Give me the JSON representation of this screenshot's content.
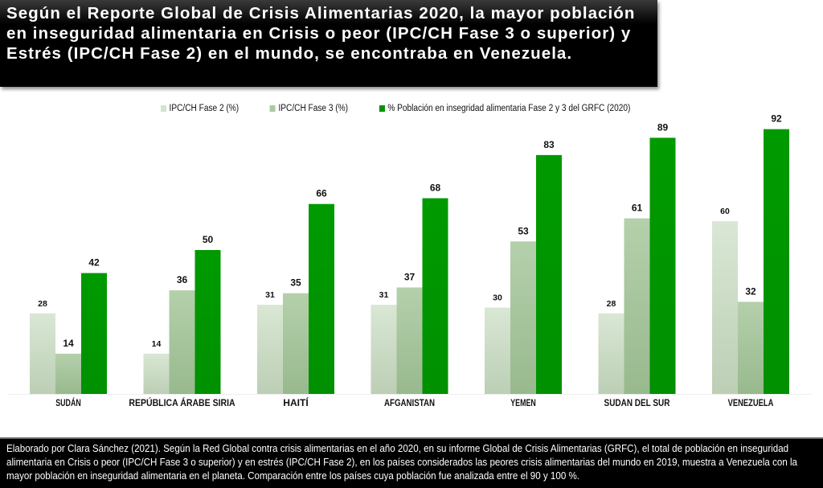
{
  "header": {
    "title": "Según el Reporte Global de Crisis Alimentarias 2020, la mayor población en inseguridad alimentaria en Crisis o peor (IPC/CH Fase 3 o superior) y Estrés (IPC/CH Fase 2) en el mundo, se encontraba en Venezuela."
  },
  "footer": {
    "note": "Elaborado por Clara Sánchez (2021). Según la Red Global contra crisis alimentarias en el año 2020, en su informe Global de Crisis Alimentarias (GRFC), el total de población en inseguridad alimentaria en Crisis o peor (IPC/CH Fase 3 o superior) y en estrés (IPC/CH Fase 2), en los países considerados las peores crisis alimentarias del mundo en 2019, muestra a Venezuela con la mayor población en inseguridad alimentaria en el planeta. Comparación entre los países cuya población fue analizada entre el 90 y 100 %."
  },
  "colors": {
    "fase2": "#d4e3cf",
    "fase3": "#acc9a3",
    "grfc": "#009300"
  },
  "chart_data": {
    "type": "bar",
    "title": "",
    "xlabel": "",
    "ylabel": "",
    "ylim": [
      0,
      100
    ],
    "grid": false,
    "legend_position": "top",
    "categories": [
      "SUDÁN",
      "REPÚBLICA ÁRABE SIRIA",
      "HAITÍ",
      "AFGANISTAN",
      "YEMEN",
      "SUDAN DEL SUR",
      "VENEZUELA"
    ],
    "series": [
      {
        "name": "IPC/CH Fase 2 (%)",
        "values": [
          28,
          14,
          31,
          31,
          30,
          28,
          60
        ]
      },
      {
        "name": "IPC/CH Fase 3 (%)",
        "values": [
          14,
          36,
          35,
          37,
          53,
          61,
          32
        ]
      },
      {
        "name": "% Población en insegridad alimentaria Fase 2 y 3 del GRFC (2020)",
        "values": [
          42,
          50,
          66,
          68,
          83,
          89,
          92
        ]
      }
    ],
    "data_labels": true
  }
}
